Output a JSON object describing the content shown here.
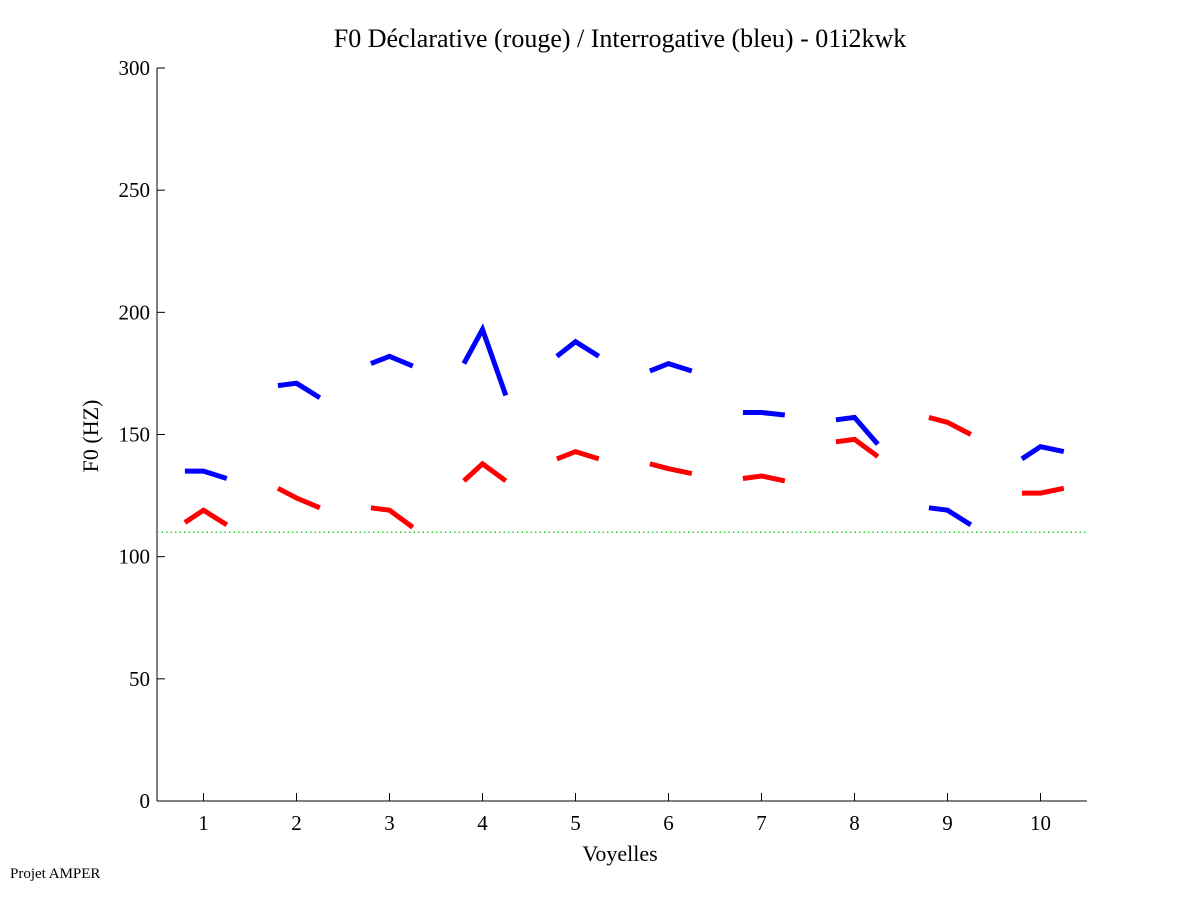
{
  "chart_data": {
    "type": "line",
    "title": "F0 Déclarative (rouge) / Interrogative (bleu) - 01i2kwk",
    "xlabel": "Voyelles",
    "ylabel": "F0 (HZ)",
    "ylim": [
      0,
      300
    ],
    "xlim": [
      0.5,
      10.5
    ],
    "yticks": [
      0,
      50,
      100,
      150,
      200,
      250,
      300
    ],
    "xticks": [
      1,
      2,
      3,
      4,
      5,
      6,
      7,
      8,
      9,
      10
    ],
    "reference_line": {
      "y": 110,
      "color": "#00cc00",
      "style": "dotted"
    },
    "series": [
      {
        "color": "#ff0000",
        "segments": [
          {
            "x": [
              0.8,
              1.0,
              1.25
            ],
            "y": [
              114,
              119,
              113
            ]
          },
          {
            "x": [
              1.8,
              2.0,
              2.25
            ],
            "y": [
              128,
              124,
              120
            ]
          },
          {
            "x": [
              2.8,
              3.0,
              3.25
            ],
            "y": [
              120,
              119,
              112
            ]
          },
          {
            "x": [
              3.8,
              4.0,
              4.25
            ],
            "y": [
              131,
              138,
              131
            ]
          },
          {
            "x": [
              4.8,
              5.0,
              5.25
            ],
            "y": [
              140,
              143,
              140
            ]
          },
          {
            "x": [
              5.8,
              6.0,
              6.25
            ],
            "y": [
              138,
              136,
              134
            ]
          },
          {
            "x": [
              6.8,
              7.0,
              7.25
            ],
            "y": [
              132,
              133,
              131
            ]
          },
          {
            "x": [
              7.8,
              8.0,
              8.25
            ],
            "y": [
              147,
              148,
              141
            ]
          },
          {
            "x": [
              8.8,
              9.0,
              9.25
            ],
            "y": [
              157,
              155,
              150
            ]
          },
          {
            "x": [
              9.8,
              10.0,
              10.25
            ],
            "y": [
              126,
              126,
              128
            ]
          }
        ]
      },
      {
        "color": "#0000ff",
        "segments": [
          {
            "x": [
              0.8,
              1.0,
              1.25
            ],
            "y": [
              135,
              135,
              132
            ]
          },
          {
            "x": [
              1.8,
              2.0,
              2.25
            ],
            "y": [
              170,
              171,
              165
            ]
          },
          {
            "x": [
              2.8,
              3.0,
              3.25
            ],
            "y": [
              179,
              182,
              178
            ]
          },
          {
            "x": [
              3.8,
              4.0,
              4.25
            ],
            "y": [
              179,
              193,
              166
            ]
          },
          {
            "x": [
              4.8,
              5.0,
              5.25
            ],
            "y": [
              182,
              188,
              182
            ]
          },
          {
            "x": [
              5.8,
              6.0,
              6.25
            ],
            "y": [
              176,
              179,
              176
            ]
          },
          {
            "x": [
              6.8,
              7.0,
              7.25
            ],
            "y": [
              159,
              159,
              158
            ]
          },
          {
            "x": [
              7.8,
              8.0,
              8.25
            ],
            "y": [
              156,
              157,
              146
            ]
          },
          {
            "x": [
              8.8,
              9.0,
              9.25
            ],
            "y": [
              120,
              119,
              113
            ]
          },
          {
            "x": [
              9.8,
              10.0,
              10.25
            ],
            "y": [
              140,
              145,
              143
            ]
          }
        ]
      }
    ]
  },
  "footer": {
    "credit": "Projet AMPER"
  }
}
